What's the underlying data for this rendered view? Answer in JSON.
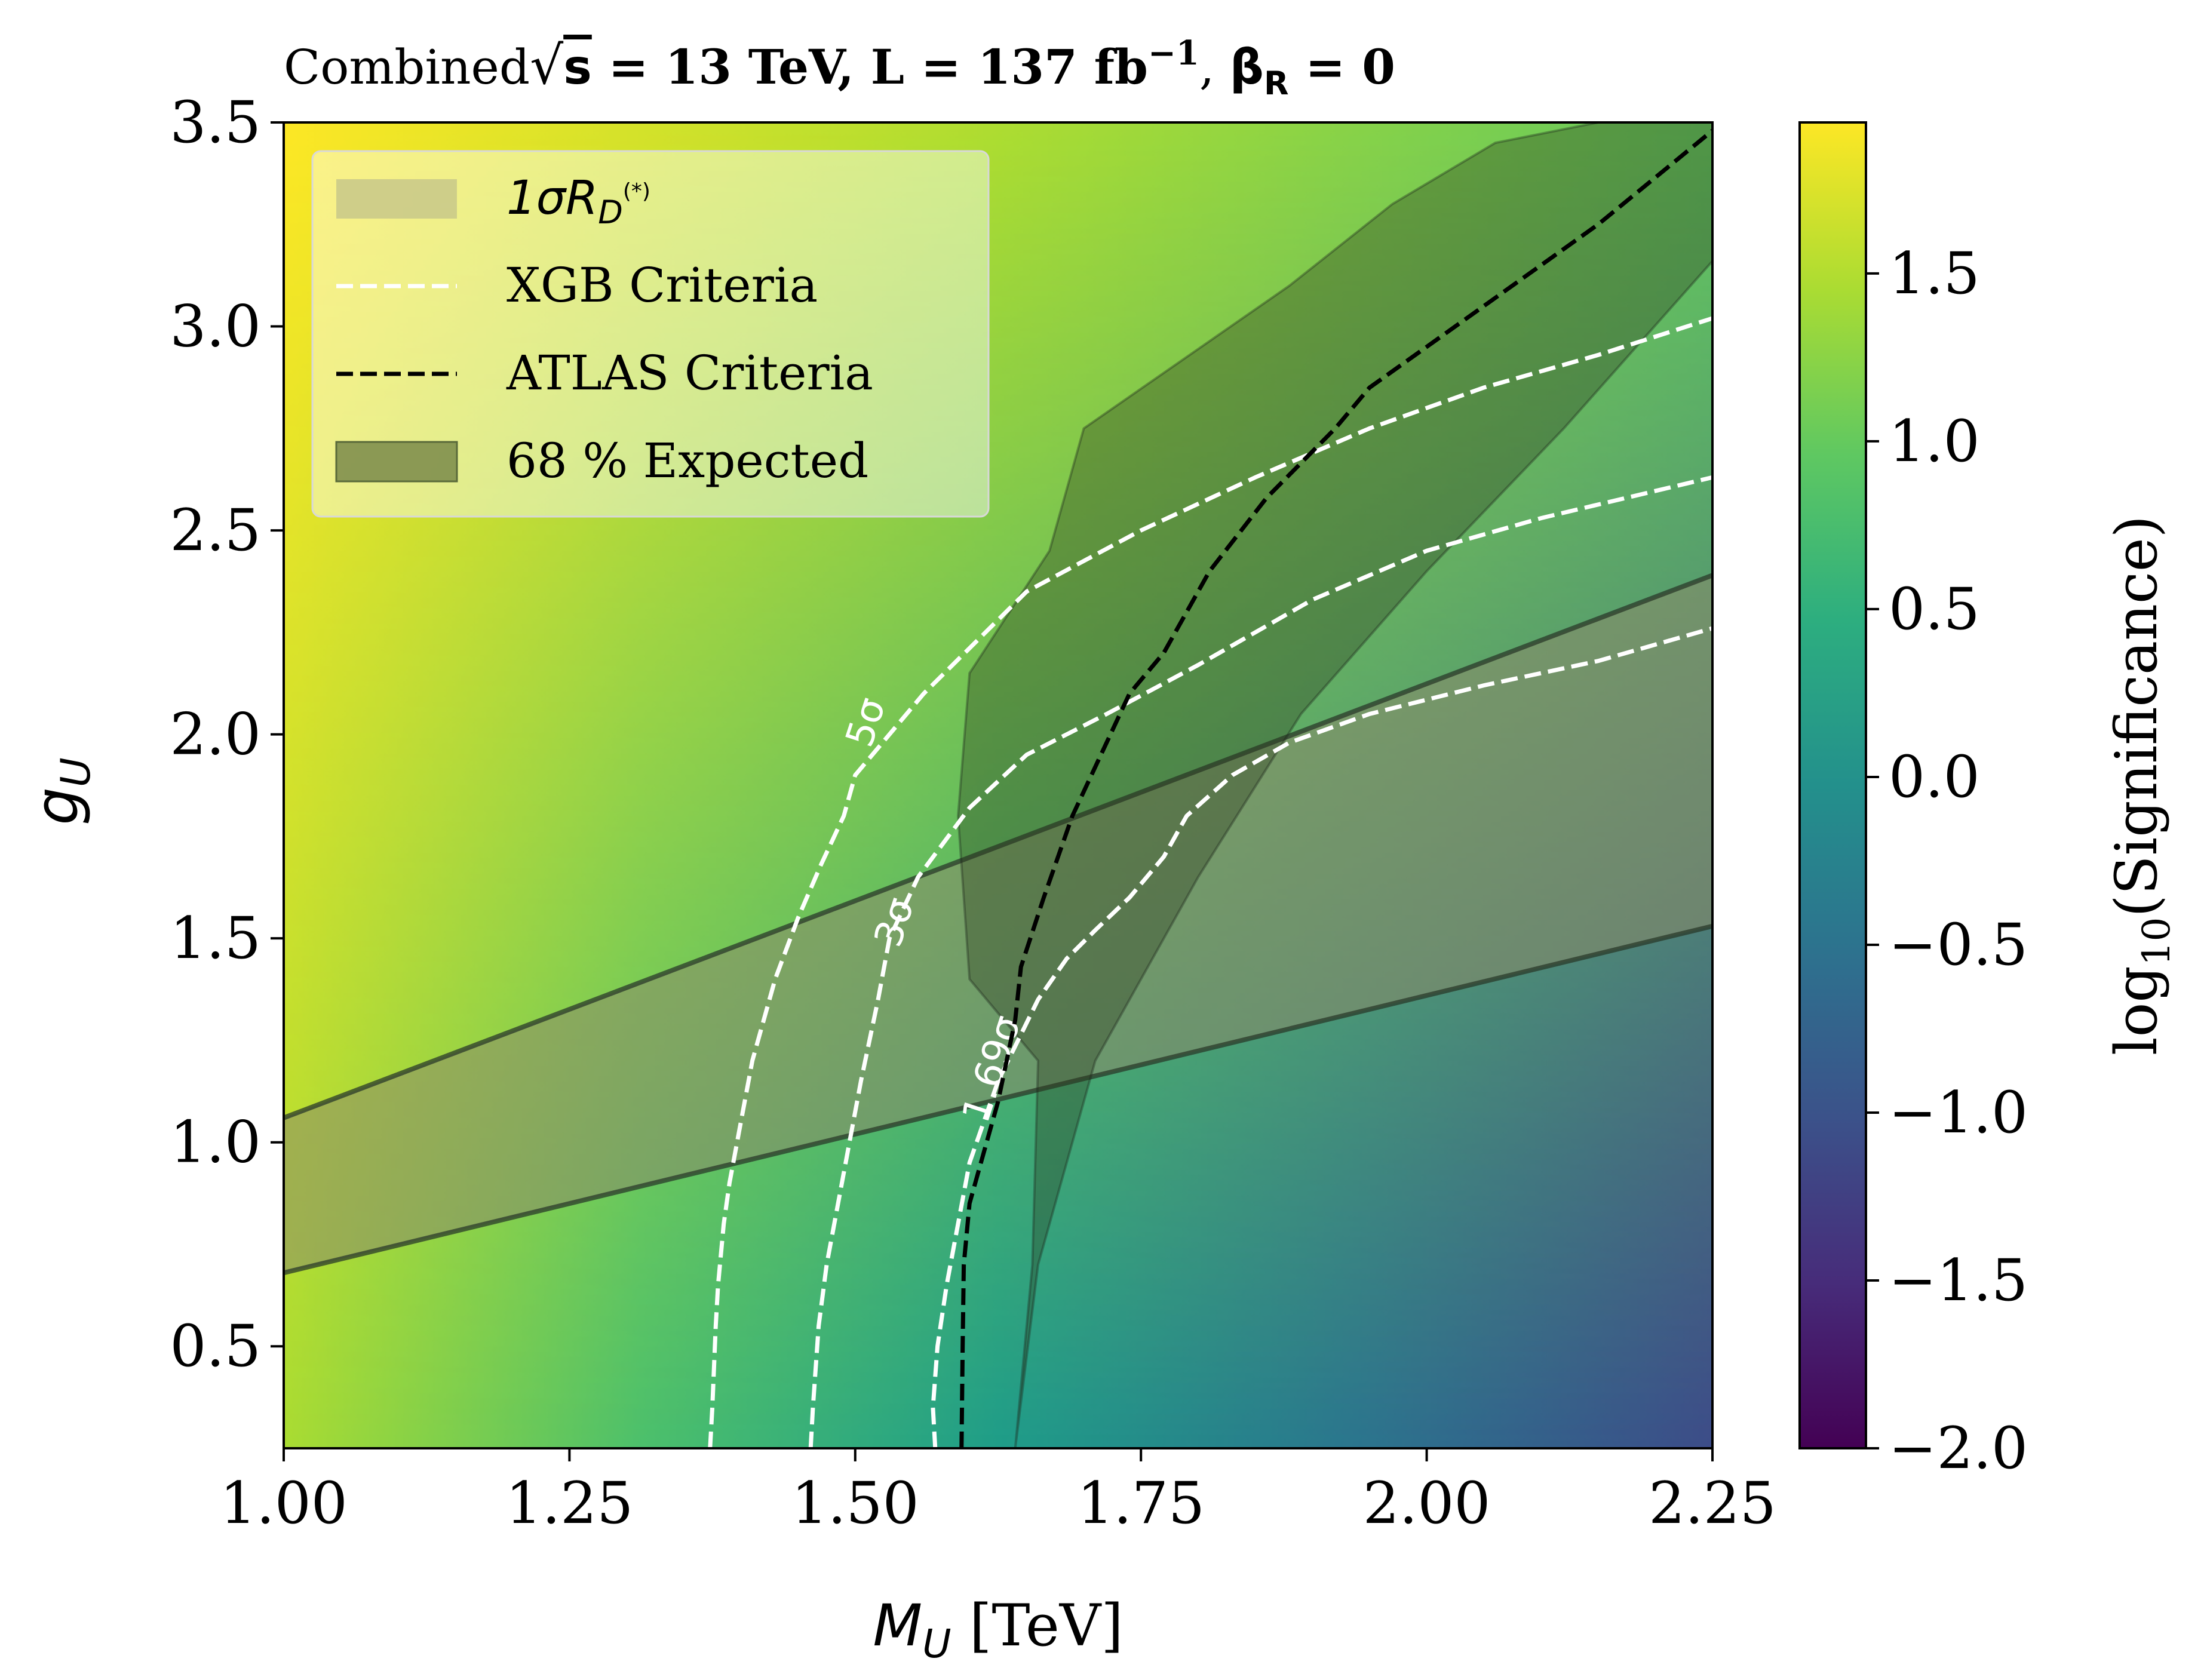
{
  "chart_data": {
    "type": "heatmap",
    "title": {
      "prefix": "Combined",
      "sqrt": "s",
      "main": " = 13 TeV, L = 137 fb",
      "main_sup": "−1",
      "comma": ", ",
      "beta": "β",
      "beta_sub": "R",
      "beta_tail": " = 0"
    },
    "xlabel": {
      "var": "M",
      "sub": "U",
      "unit": " [TeV]"
    },
    "ylabel": {
      "var": "g",
      "sub": "U"
    },
    "xlim": [
      1.0,
      2.25
    ],
    "ylim": [
      0.25,
      3.5
    ],
    "xticks": [
      1.0,
      1.25,
      1.5,
      1.75,
      2.0,
      2.25
    ],
    "xtick_labels": [
      "1.00",
      "1.25",
      "1.50",
      "1.75",
      "2.00",
      "2.25"
    ],
    "yticks": [
      0.5,
      1.0,
      1.5,
      2.0,
      2.5,
      3.0,
      3.5
    ],
    "ytick_labels": [
      "0.5",
      "1.0",
      "1.5",
      "2.0",
      "2.5",
      "3.0",
      "3.5"
    ],
    "grid": false,
    "colormap": "viridis",
    "heatmap_corners": {
      "x1_y350": 1.95,
      "x1_y025": 1.45,
      "x225_y350": 1.0,
      "x225_y025": -1.1
    },
    "colorbar": {
      "label": {
        "prefix": "log",
        "sub": "10",
        "tail": "(Significance)"
      },
      "range": [
        -2.0,
        1.95
      ],
      "ticks": [
        -2.0,
        -1.5,
        -1.0,
        -0.5,
        0.0,
        0.5,
        1.0,
        1.5
      ],
      "tick_labels": [
        "−2.0",
        "−1.5",
        "−1.0",
        "−0.5",
        "0.0",
        "0.5",
        "1.0",
        "1.5"
      ]
    },
    "legend": {
      "placement": "top-left",
      "entries": [
        {
          "label": "1σR",
          "label_sub": "D",
          "label_sup": "(*)",
          "style": "band",
          "color": "#c8c88a"
        },
        {
          "label": "XGB Criteria",
          "style": "dashed",
          "color": "#ffffff"
        },
        {
          "label": "ATLAS Criteria",
          "style": "dashed",
          "color": "#000000"
        },
        {
          "label": "68 % Expected",
          "style": "band",
          "color": "#7a8a4a"
        }
      ]
    },
    "rd_band": {
      "upper": {
        "x": [
          1.0,
          2.25
        ],
        "y": [
          1.06,
          2.39
        ]
      },
      "lower": {
        "x": [
          1.0,
          2.25
        ],
        "y": [
          0.68,
          1.53
        ]
      }
    },
    "expected_band": {
      "left": {
        "x": [
          1.64,
          1.655,
          1.66,
          1.6,
          1.59,
          1.6,
          1.67,
          1.685,
          1.7,
          1.88,
          1.97,
          2.06,
          2.15,
          2.25
        ],
        "y": [
          0.25,
          0.7,
          1.2,
          1.4,
          1.8,
          2.15,
          2.45,
          2.6,
          2.75,
          3.1,
          3.3,
          3.45,
          3.5,
          3.5
        ]
      },
      "right": {
        "x": [
          1.64,
          1.66,
          1.71,
          1.8,
          1.89,
          2.0,
          2.12,
          2.25
        ],
        "y": [
          0.25,
          0.7,
          1.2,
          1.65,
          2.05,
          2.4,
          2.75,
          3.16
        ]
      },
      "right_upper": {
        "x": [
          1.89,
          1.95,
          2.1,
          2.25
        ],
        "y": [
          2.42,
          2.55,
          2.8,
          3.16
        ]
      }
    },
    "series": [
      {
        "name": "XGB Criteria",
        "label": "5σ",
        "x": [
          1.373,
          1.375,
          1.378,
          1.38,
          1.385,
          1.39,
          1.4,
          1.41,
          1.43,
          1.45,
          1.47,
          1.49,
          1.5,
          1.56,
          1.65,
          1.75,
          1.85,
          1.95,
          2.05,
          2.15,
          2.25
        ],
        "y": [
          0.25,
          0.35,
          0.55,
          0.65,
          0.8,
          0.9,
          1.05,
          1.2,
          1.4,
          1.55,
          1.68,
          1.8,
          1.9,
          2.1,
          2.35,
          2.5,
          2.63,
          2.75,
          2.85,
          2.93,
          3.02
        ]
      },
      {
        "name": "XGB Criteria",
        "label": "3σ",
        "x": [
          1.461,
          1.463,
          1.468,
          1.475,
          1.485,
          1.495,
          1.505,
          1.52,
          1.53,
          1.555,
          1.6,
          1.65,
          1.72,
          1.8,
          1.9,
          2.0,
          2.1,
          2.25
        ],
        "y": [
          0.25,
          0.35,
          0.55,
          0.7,
          0.85,
          1.0,
          1.15,
          1.35,
          1.5,
          1.65,
          1.82,
          1.95,
          2.05,
          2.17,
          2.33,
          2.45,
          2.53,
          2.63
        ]
      },
      {
        "name": "XGB Criteria",
        "label": "1.69σ",
        "x": [
          1.57,
          1.568,
          1.572,
          1.58,
          1.59,
          1.6,
          1.625,
          1.66,
          1.685,
          1.71,
          1.74,
          1.77,
          1.79,
          1.83,
          1.88,
          1.95,
          2.05,
          2.15,
          2.25
        ],
        "y": [
          0.25,
          0.35,
          0.5,
          0.65,
          0.8,
          0.95,
          1.15,
          1.35,
          1.45,
          1.52,
          1.6,
          1.7,
          1.8,
          1.9,
          1.98,
          2.05,
          2.12,
          2.18,
          2.26
        ]
      },
      {
        "name": "ATLAS Criteria",
        "x": [
          1.593,
          1.594,
          1.595,
          1.6,
          1.61,
          1.625,
          1.64,
          1.645,
          1.665,
          1.69,
          1.715,
          1.74,
          1.77,
          1.81,
          1.86,
          1.92,
          1.95,
          2.05,
          2.15,
          2.25
        ],
        "y": [
          0.25,
          0.5,
          0.7,
          0.85,
          0.95,
          1.1,
          1.3,
          1.43,
          1.6,
          1.8,
          1.95,
          2.1,
          2.2,
          2.4,
          2.58,
          2.75,
          2.85,
          3.05,
          3.25,
          3.48
        ]
      }
    ]
  }
}
